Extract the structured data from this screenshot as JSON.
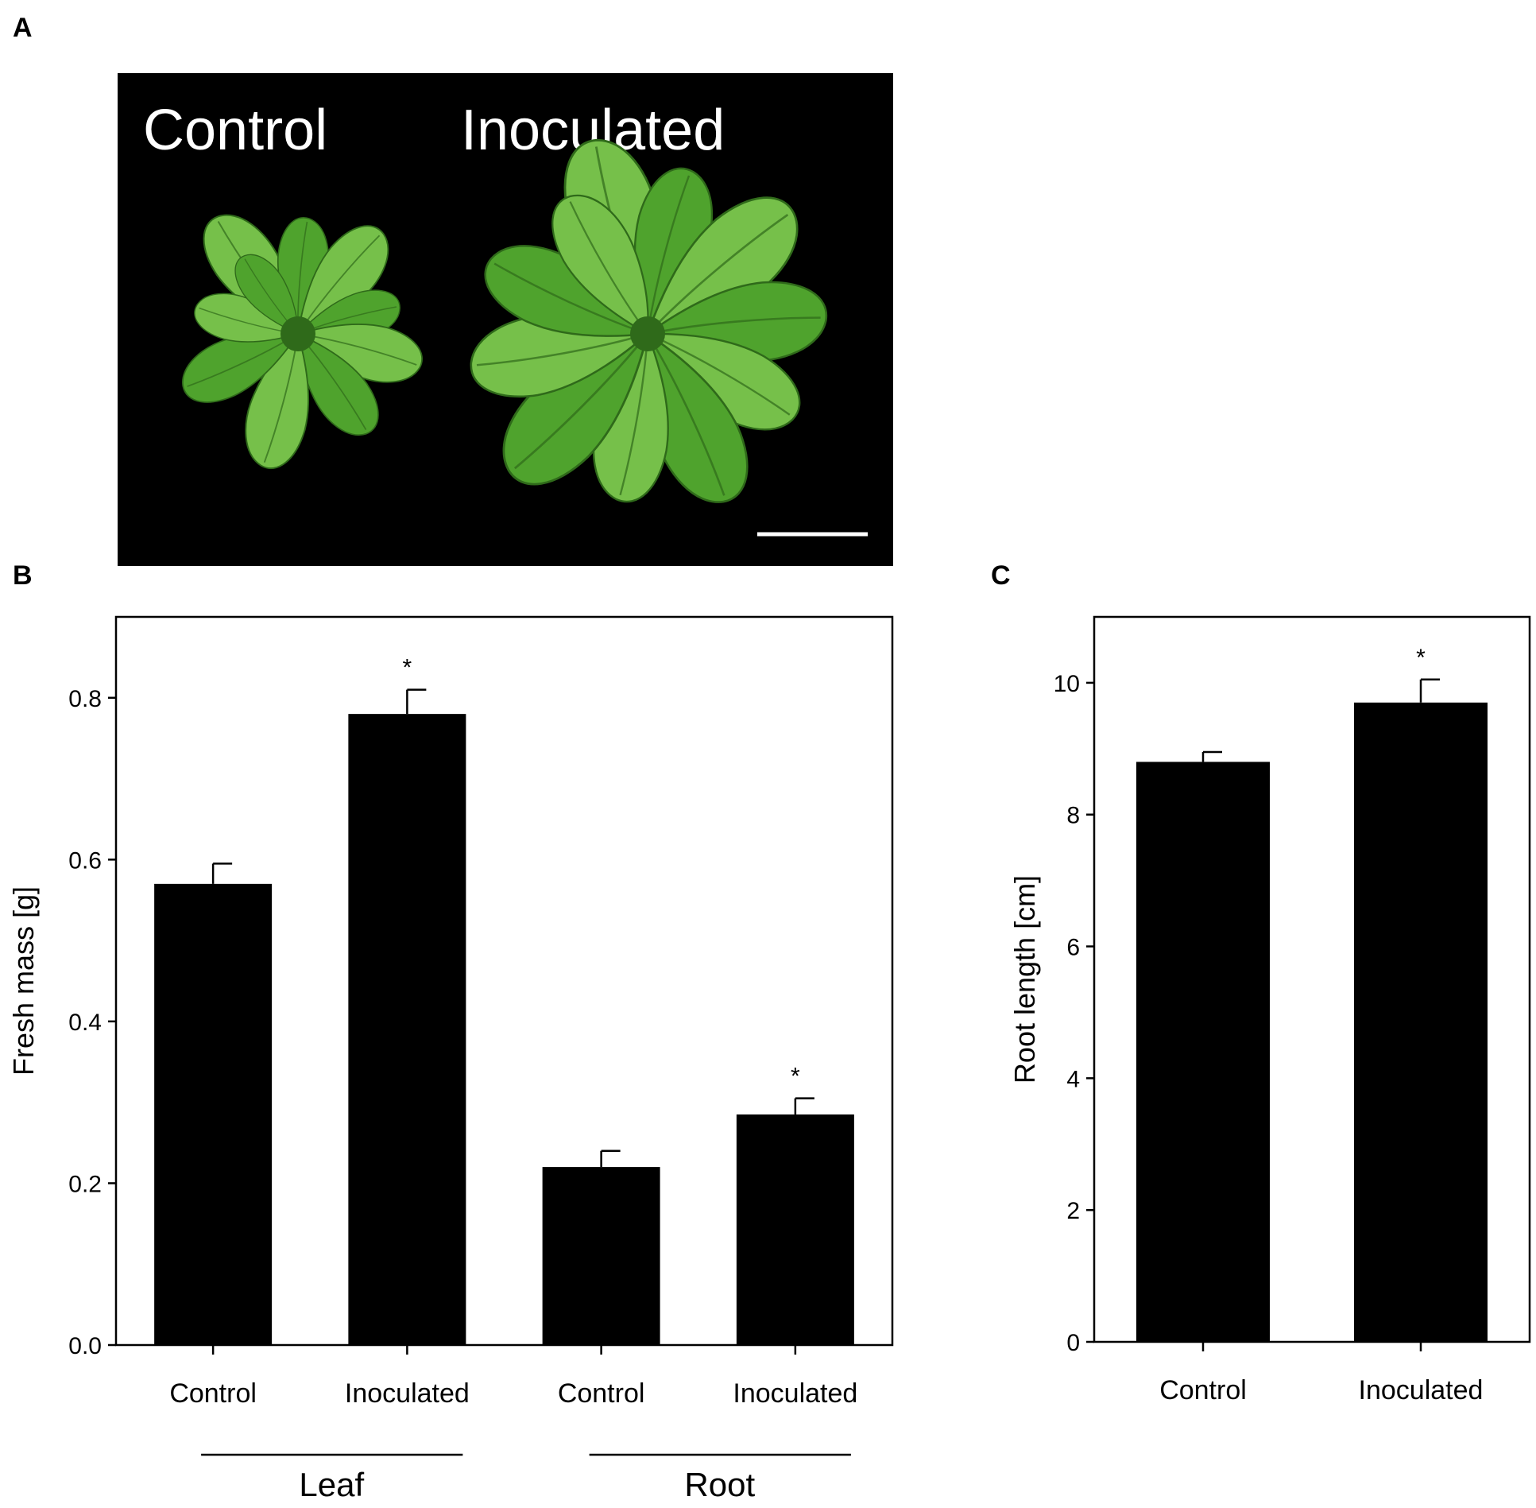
{
  "panels": {
    "a": {
      "letter": "A",
      "photo_labels": [
        "Control",
        "Inoculated"
      ]
    },
    "b": {
      "letter": "B"
    },
    "c": {
      "letter": "C"
    }
  },
  "colors": {
    "bar_fill": "#000000",
    "photo_background": "#000000",
    "leaf_fill": "#4fa32d",
    "leaf_highlight": "#76c04a",
    "leaf_vein": "#2f6a1a",
    "text": "#000000",
    "photo_text": "#ffffff"
  },
  "chart_data": [
    {
      "panel": "B",
      "type": "bar",
      "categories": [
        "Control",
        "Inoculated",
        "Control",
        "Inoculated"
      ],
      "groups": [
        {
          "label": "Leaf",
          "categories": [
            0,
            1
          ]
        },
        {
          "label": "Root",
          "categories": [
            2,
            3
          ]
        }
      ],
      "values": [
        0.57,
        0.78,
        0.22,
        0.285
      ],
      "errors": [
        0.025,
        0.03,
        0.02,
        0.02
      ],
      "significance": [
        "",
        "*",
        "",
        "*"
      ],
      "ylabel": "Fresh mass [g]",
      "xlabel": "",
      "ylim": [
        0,
        0.9
      ],
      "yticks": [
        0.0,
        0.2,
        0.4,
        0.6,
        0.8
      ],
      "ytick_labels": [
        "0.0",
        "0.2",
        "0.4",
        "0.6",
        "0.8"
      ],
      "grid": false
    },
    {
      "panel": "C",
      "type": "bar",
      "categories": [
        "Control",
        "Inoculated"
      ],
      "values": [
        8.8,
        9.7
      ],
      "errors": [
        0.15,
        0.35
      ],
      "significance": [
        "",
        "*"
      ],
      "ylabel": "Root length [cm]",
      "xlabel": "",
      "ylim": [
        0,
        11
      ],
      "yticks": [
        0,
        2,
        4,
        6,
        8,
        10
      ],
      "ytick_labels": [
        "0",
        "2",
        "4",
        "6",
        "8",
        "10"
      ],
      "grid": false
    }
  ]
}
